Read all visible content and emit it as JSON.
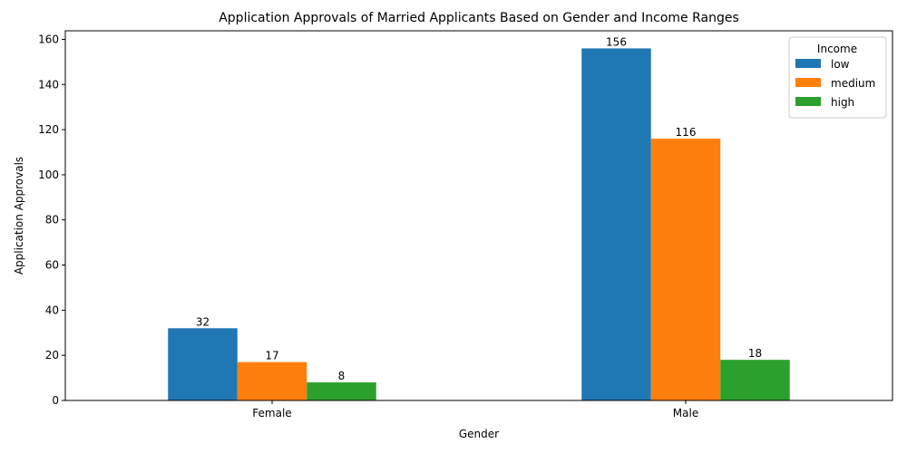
{
  "chart_data": {
    "type": "bar",
    "title": "Application Approvals of Married Applicants Based on Gender and Income Ranges",
    "xlabel": "Gender",
    "ylabel": "Application Approvals",
    "categories": [
      "Female",
      "Male"
    ],
    "series": [
      {
        "name": "low",
        "values": [
          32,
          156
        ],
        "color": "#1f77b4"
      },
      {
        "name": "medium",
        "values": [
          17,
          116
        ],
        "color": "#ff7f0e"
      },
      {
        "name": "high",
        "values": [
          8,
          18
        ],
        "color": "#2ca02c"
      }
    ],
    "ylim": [
      0,
      163.8
    ],
    "yticks": [
      0,
      20,
      40,
      60,
      80,
      100,
      120,
      140,
      160
    ],
    "legend": {
      "title": "Income",
      "placement": "top-right"
    },
    "grid": false
  }
}
